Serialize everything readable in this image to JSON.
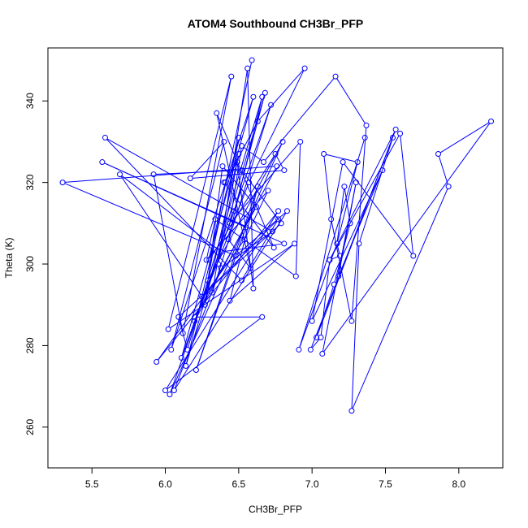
{
  "chart_data": {
    "type": "line",
    "title": "ATOM4 Southbound CH3Br_PFP",
    "xlabel": "CH3Br_PFP",
    "ylabel": "Theta (K)",
    "xlim": [
      5.2,
      8.3
    ],
    "ylim": [
      250,
      353
    ],
    "xticks": [
      5.5,
      6.0,
      6.5,
      7.0,
      7.5,
      8.0
    ],
    "xtick_labels": [
      "5.5",
      "6.0",
      "6.5",
      "7.0",
      "7.5",
      "8.0"
    ],
    "yticks": [
      260,
      280,
      300,
      320,
      340
    ],
    "ytick_labels": [
      "260",
      "280",
      "300",
      "320",
      "340"
    ],
    "grid": false,
    "colors": {
      "series": "#0000ff",
      "axes": "#000000"
    },
    "series": [
      {
        "marker": "open-circle",
        "x": [
          6.59,
          6.3,
          6.75,
          6.81,
          6.17,
          6.4,
          6.04,
          6.6,
          6.11,
          6.47,
          6.68,
          6.14,
          6.5,
          6.32,
          6.72,
          6.03,
          6.8,
          6.29,
          6.41,
          6.63,
          6.95,
          6.57,
          6.2,
          6.76,
          5.3,
          6.48,
          6.83,
          6.06,
          6.38,
          6.73,
          5.59,
          6.52,
          6.77,
          6.25,
          5.69,
          6.38,
          6.81,
          5.57,
          6.55,
          6.21,
          6.63,
          6.44,
          6.88,
          6.02,
          6.45,
          6.12,
          5.92,
          6.52,
          6.79,
          6.09,
          6.15,
          6.66,
          6.43,
          6.58,
          6.35,
          6.74,
          6.4,
          6.49,
          6.6,
          6.56,
          6.36,
          6.5,
          6.27,
          6.39,
          6.62,
          6.2,
          6.66,
          6.0,
          6.77,
          5.94,
          6.54,
          6.7,
          6.28,
          6.34,
          6.89,
          6.92,
          6.44,
          6.52,
          6.67,
          7.16,
          7.37,
          7.27,
          7.13,
          7.08,
          7.31,
          7.17,
          7.22,
          7.26,
          7.15,
          7.03,
          7.57,
          7.12,
          7.6,
          7.69,
          7.21,
          7.0,
          7.48,
          7.18,
          7.3,
          7.07,
          8.22,
          7.86,
          7.93,
          7.27,
          7.32,
          7.55,
          6.99,
          7.06,
          7.12,
          7.19,
          7.17,
          6.91,
          7.36
        ],
        "y": [
          350,
          301,
          327,
          323,
          321,
          330,
          279,
          341,
          277,
          313,
          342,
          275,
          331,
          293,
          339,
          268,
          330,
          296,
          320,
          335,
          348,
          320,
          286,
          324,
          320,
          302,
          313,
          269,
          299,
          308,
          331,
          296,
          311,
          292,
          322,
          303,
          305,
          325,
          309,
          274,
          319,
          291,
          305,
          284,
          346,
          283,
          322,
          323,
          310,
          287,
          279,
          341,
          306,
          299,
          337,
          304,
          320,
          325,
          294,
          348,
          300,
          327,
          290,
          324,
          314,
          287,
          287,
          269,
          313,
          276,
          306,
          318,
          301,
          311,
          297,
          330,
          310,
          329,
          325,
          346,
          334,
          286,
          311,
          327,
          325,
          305,
          319,
          310,
          295,
          282,
          333,
          301,
          332,
          302,
          325,
          286,
          323,
          297,
          320,
          278,
          335,
          327,
          319,
          264,
          305,
          331,
          279,
          282,
          301,
          302,
          305,
          279,
          331
        ]
      }
    ]
  }
}
